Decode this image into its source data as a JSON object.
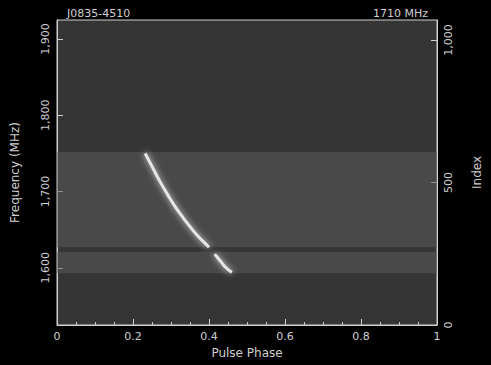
{
  "chart_data": {
    "type": "line",
    "title": "J0835-4510",
    "subtitle": "1710 MHz",
    "x_label": "Pulse Phase",
    "y_label": "Frequency (MHz)",
    "y2_label": "Index",
    "x": [
      0.232,
      0.25,
      0.27,
      0.29,
      0.31,
      0.33,
      0.35,
      0.37,
      0.39,
      0.4,
      0.407,
      0.415,
      0.43,
      0.445,
      0.46
    ],
    "values": [
      1750,
      1733,
      1714,
      1697,
      1681,
      1667,
      1654,
      1642,
      1632,
      1627,
      null,
      1618,
      1609,
      1600,
      1594
    ],
    "bands": [
      [
        1593,
        1621
      ],
      [
        1627,
        1752
      ]
    ],
    "color": "#e6e6e6",
    "line_style": "solid",
    "xlim": [
      0,
      1
    ],
    "xticks": [
      0,
      0.2,
      0.4,
      0.6,
      0.8,
      1
    ],
    "ylim": [
      1525,
      1925
    ],
    "yticks": [
      1600,
      1700,
      1800,
      1900
    ],
    "y2lim": [
      0,
      1070
    ],
    "y2ticks": [
      0,
      500,
      1000
    ],
    "grid": false
  }
}
